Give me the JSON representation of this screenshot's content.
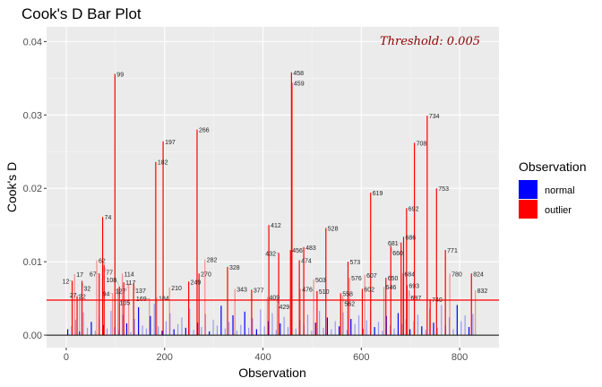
{
  "chart_data": {
    "type": "bar",
    "title": "Cook's D Bar Plot",
    "xlabel": "Observation",
    "ylabel": "Cook's D",
    "xlim": [
      -40,
      880
    ],
    "ylim": [
      -0.0017,
      0.042
    ],
    "xticks": [
      0,
      200,
      400,
      600,
      800
    ],
    "xtick_labels": [
      "0",
      "200",
      "400",
      "600",
      "800"
    ],
    "yticks": [
      0,
      0.01,
      0.02,
      0.03,
      0.04
    ],
    "ytick_labels": [
      "0.00",
      "0.01",
      "0.02",
      "0.03",
      "0.04"
    ],
    "grid": true,
    "threshold": 0.005,
    "threshold_label": "Threshold: 0.005",
    "legend": {
      "title": "Observation",
      "position": "right",
      "entries": [
        {
          "label": "normal",
          "color": "#0000ff"
        },
        {
          "label": "outlier",
          "color": "#ff0000"
        }
      ]
    },
    "outliers": [
      {
        "obs": 12,
        "d": 0.0074
      },
      {
        "obs": 17,
        "d": 0.0083
      },
      {
        "obs": 22,
        "d": 0.0053
      },
      {
        "obs": 27,
        "d": 0.0055
      },
      {
        "obs": 32,
        "d": 0.0074
      },
      {
        "obs": 62,
        "d": 0.0102
      },
      {
        "obs": 67,
        "d": 0.0084
      },
      {
        "obs": 74,
        "d": 0.0161
      },
      {
        "obs": 77,
        "d": 0.0096
      },
      {
        "obs": 94,
        "d": 0.0057
      },
      {
        "obs": 99,
        "d": 0.0356
      },
      {
        "obs": 105,
        "d": 0.0064
      },
      {
        "obs": 108,
        "d": 0.0066
      },
      {
        "obs": 114,
        "d": 0.0084
      },
      {
        "obs": 117,
        "d": 0.0072
      },
      {
        "obs": 127,
        "d": 0.007
      },
      {
        "obs": 137,
        "d": 0.0071
      },
      {
        "obs": 169,
        "d": 0.005
      },
      {
        "obs": 182,
        "d": 0.0236
      },
      {
        "obs": 184,
        "d": 0.0051
      },
      {
        "obs": 197,
        "d": 0.0264
      },
      {
        "obs": 210,
        "d": 0.0065
      },
      {
        "obs": 249,
        "d": 0.0073
      },
      {
        "obs": 266,
        "d": 0.028
      },
      {
        "obs": 270,
        "d": 0.0084
      },
      {
        "obs": 282,
        "d": 0.0103
      },
      {
        "obs": 328,
        "d": 0.0093
      },
      {
        "obs": 343,
        "d": 0.0063
      },
      {
        "obs": 377,
        "d": 0.0062
      },
      {
        "obs": 409,
        "d": 0.0052
      },
      {
        "obs": 412,
        "d": 0.015
      },
      {
        "obs": 429,
        "d": 0.0049
      },
      {
        "obs": 432,
        "d": 0.0112
      },
      {
        "obs": 456,
        "d": 0.0116
      },
      {
        "obs": 458,
        "d": 0.0358
      },
      {
        "obs": 459,
        "d": 0.0344
      },
      {
        "obs": 474,
        "d": 0.0102
      },
      {
        "obs": 476,
        "d": 0.0063
      },
      {
        "obs": 483,
        "d": 0.012
      },
      {
        "obs": 503,
        "d": 0.0076
      },
      {
        "obs": 510,
        "d": 0.006
      },
      {
        "obs": 528,
        "d": 0.0146
      },
      {
        "obs": 558,
        "d": 0.0057
      },
      {
        "obs": 562,
        "d": 0.0053
      },
      {
        "obs": 573,
        "d": 0.01
      },
      {
        "obs": 576,
        "d": 0.0078
      },
      {
        "obs": 602,
        "d": 0.0063
      },
      {
        "obs": 607,
        "d": 0.0082
      },
      {
        "obs": 619,
        "d": 0.0194
      },
      {
        "obs": 646,
        "d": 0.0066
      },
      {
        "obs": 650,
        "d": 0.0078
      },
      {
        "obs": 660,
        "d": 0.0122
      },
      {
        "obs": 681,
        "d": 0.0126
      },
      {
        "obs": 684,
        "d": 0.0084
      },
      {
        "obs": 686,
        "d": 0.0134
      },
      {
        "obs": 692,
        "d": 0.0173
      },
      {
        "obs": 693,
        "d": 0.0068
      },
      {
        "obs": 697,
        "d": 0.0061
      },
      {
        "obs": 708,
        "d": 0.0262
      },
      {
        "obs": 734,
        "d": 0.0299
      },
      {
        "obs": 740,
        "d": 0.0049
      },
      {
        "obs": 753,
        "d": 0.02
      },
      {
        "obs": 771,
        "d": 0.0116
      },
      {
        "obs": 780,
        "d": 0.0084
      },
      {
        "obs": 824,
        "d": 0.0084
      },
      {
        "obs": 832,
        "d": 0.0061
      }
    ],
    "normal_start": 3,
    "normal_step": 8,
    "normal_values": [
      0.0008,
      0.0012,
      0.0021,
      0.0005,
      0.0031,
      0.001,
      0.0018,
      0.0006,
      0.0025,
      0.0014,
      0.0009,
      0.0033,
      0.0011,
      0.0007,
      0.0028,
      0.0016,
      0.0004,
      0.0022,
      0.0038,
      0.0013,
      0.0009,
      0.0026,
      0.0043,
      0.0012,
      0.0006,
      0.0019,
      0.003,
      0.0008,
      0.0015,
      0.0024,
      0.001,
      0.0036,
      0.0007,
      0.0017,
      0.0011,
      0.0029,
      0.0005,
      0.0021,
      0.0013,
      0.004,
      0.0009,
      0.0018,
      0.0027,
      0.0006,
      0.0014,
      0.0032,
      0.001,
      0.0023,
      0.0008,
      0.0035,
      0.0012,
      0.0019,
      0.003,
      0.0007,
      0.0016,
      0.0025,
      0.0011,
      0.0038,
      0.0009,
      0.0021,
      0.0014,
      0.0028,
      0.0006,
      0.0017,
      0.0033,
      0.001,
      0.0024,
      0.0008,
      0.0019,
      0.0012,
      0.0031,
      0.0007,
      0.0022,
      0.0015,
      0.0027,
      0.0009,
      0.002,
      0.0035,
      0.0011,
      0.0018,
      0.0006,
      0.0026,
      0.0013,
      0.0009,
      0.003,
      0.0015,
      0.0022,
      0.0008,
      0.0019,
      0.0028,
      0.0012,
      0.0007,
      0.0036,
      0.0017,
      0.001,
      0.0041,
      0.0013,
      0.0024,
      0.0008,
      0.0041,
      0.0019,
      0.0027,
      0.0011,
      0.0029
    ]
  }
}
